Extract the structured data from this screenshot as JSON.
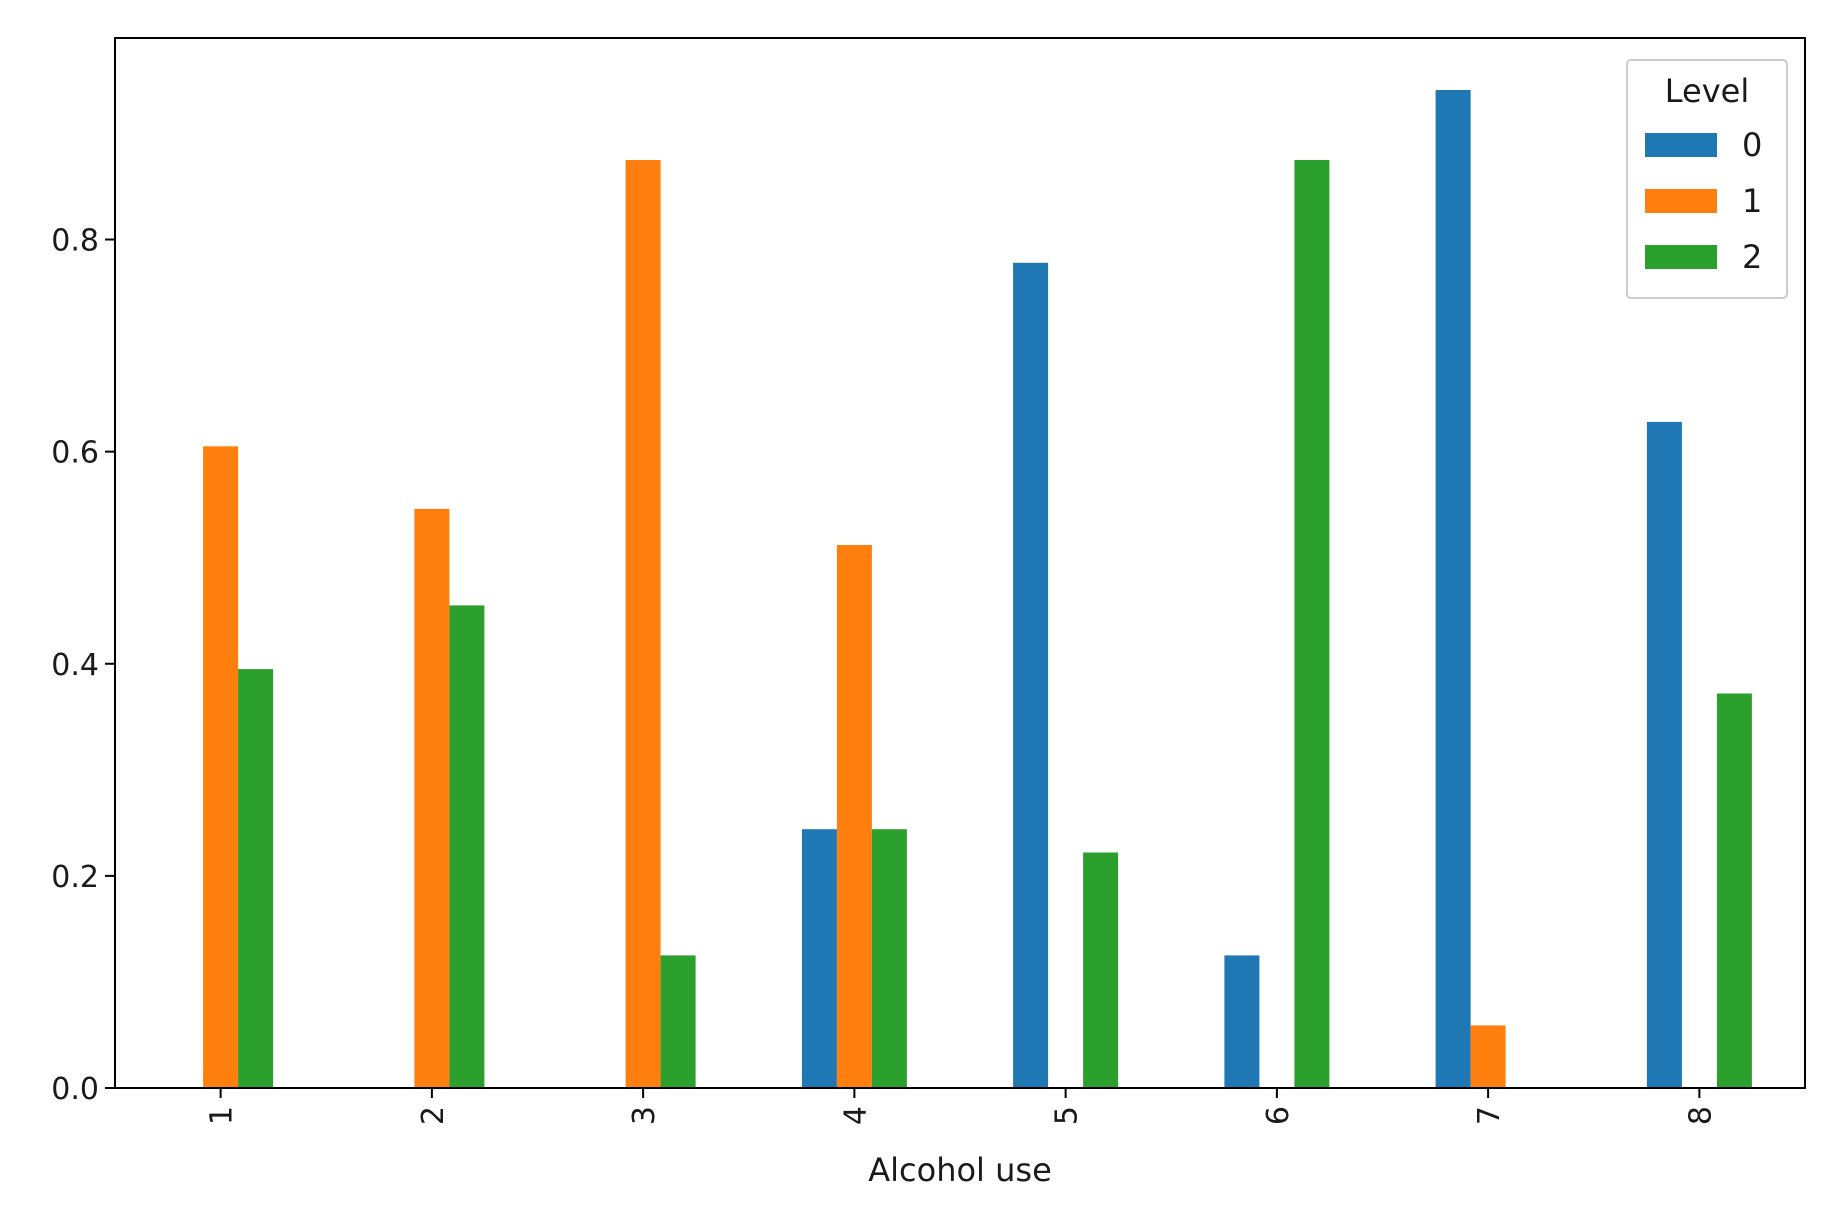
{
  "chart_data": {
    "type": "bar",
    "categories": [
      "1",
      "2",
      "3",
      "4",
      "5",
      "6",
      "7",
      "8"
    ],
    "series": [
      {
        "name": "0",
        "color": "#1f77b4",
        "values": [
          0,
          0,
          0,
          0.244,
          0.778,
          0.125,
          0.941,
          0.628
        ]
      },
      {
        "name": "1",
        "color": "#ff7f0e",
        "values": [
          0.605,
          0.546,
          0.875,
          0.512,
          0,
          0,
          0.059,
          0
        ]
      },
      {
        "name": "2",
        "color": "#2ca02c",
        "values": [
          0.395,
          0.455,
          0.125,
          0.244,
          0.222,
          0.875,
          0,
          0.372
        ]
      }
    ],
    "xlabel": "Alcohol use",
    "ylabel": "",
    "ylim": [
      0,
      0.99
    ],
    "yticks": [
      0.0,
      0.2,
      0.4,
      0.6,
      0.8
    ],
    "ytick_labels": [
      "0.0",
      "0.2",
      "0.4",
      "0.6",
      "0.8"
    ],
    "grid": false,
    "legend": {
      "title": "Level",
      "position": "top-right"
    }
  }
}
